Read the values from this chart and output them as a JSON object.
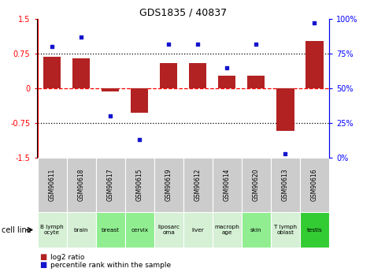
{
  "title": "GDS1835 / 40837",
  "samples": [
    "GSM90611",
    "GSM90618",
    "GSM90617",
    "GSM90615",
    "GSM90619",
    "GSM90612",
    "GSM90614",
    "GSM90620",
    "GSM90613",
    "GSM90616"
  ],
  "cell_lines": [
    "B lymph\nocyte",
    "brain",
    "breast",
    "cervix",
    "liposarc\noma",
    "liver",
    "macroph\nage",
    "skin",
    "T lymph\noblast",
    "testis"
  ],
  "log2_ratio": [
    0.68,
    0.65,
    -0.07,
    -0.52,
    0.55,
    0.55,
    0.27,
    0.27,
    -0.92,
    1.02
  ],
  "percentile_rank": [
    80,
    87,
    30,
    13,
    82,
    82,
    65,
    82,
    3,
    97
  ],
  "bar_color": "#B22222",
  "dot_color": "#1515CC",
  "ylim": [
    -1.5,
    1.5
  ],
  "right_ylim": [
    0,
    100
  ],
  "right_yticks": [
    0,
    25,
    50,
    75,
    100
  ],
  "right_yticklabels": [
    "0%",
    "25%",
    "50%",
    "75%",
    "100%"
  ],
  "left_yticks": [
    -1.5,
    -0.75,
    0,
    0.75,
    1.5
  ],
  "left_yticklabels": [
    "-1.5",
    "-0.75",
    "0",
    "0.75",
    "1.5"
  ],
  "hlines_dotted": [
    0.75,
    -0.75
  ],
  "hline_red_dashed": 0,
  "cell_line_colors": [
    "#d5f0d5",
    "#d5f0d5",
    "#90EE90",
    "#90EE90",
    "#d5f0d5",
    "#d5f0d5",
    "#d5f0d5",
    "#90EE90",
    "#d5f0d5",
    "#33CC33"
  ],
  "gsm_row_color": "#cccccc",
  "legend_bar_label": "log2 ratio",
  "legend_dot_label": "percentile rank within the sample",
  "cell_line_label": "cell line"
}
